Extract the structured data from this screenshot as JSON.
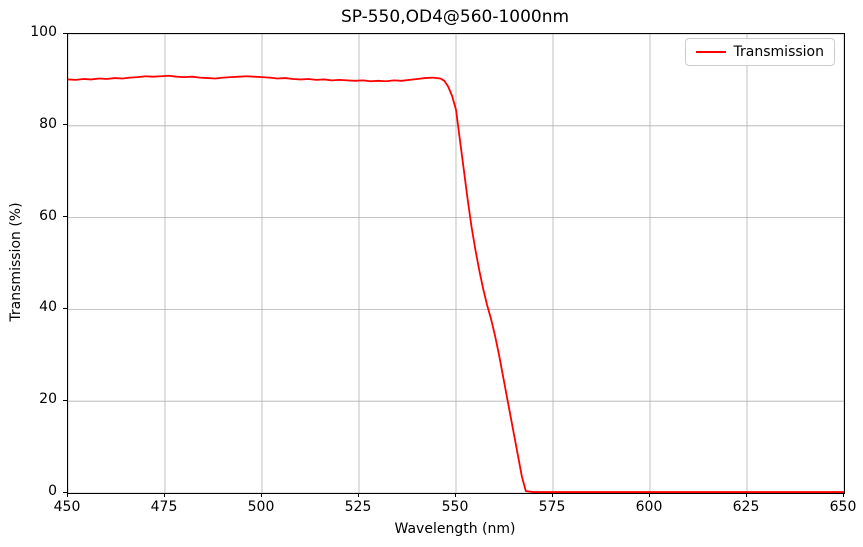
{
  "chart_data": {
    "type": "line",
    "title": "SP-550,OD4@560-1000nm",
    "xlabel": "Wavelength (nm)",
    "ylabel": "Transmission (%)",
    "xlim": [
      450,
      650
    ],
    "ylim": [
      0,
      100
    ],
    "xticks": [
      450,
      475,
      500,
      525,
      550,
      575,
      600,
      625,
      650
    ],
    "yticks": [
      0,
      20,
      40,
      60,
      80,
      100
    ],
    "grid": true,
    "legend": {
      "position": "upper-right",
      "entries": [
        "Transmission"
      ]
    },
    "series": [
      {
        "name": "Transmission",
        "color": "#ff0000",
        "points": [
          [
            450,
            90.1
          ],
          [
            452,
            90.0
          ],
          [
            454,
            90.2
          ],
          [
            456,
            90.1
          ],
          [
            458,
            90.3
          ],
          [
            460,
            90.2
          ],
          [
            462,
            90.4
          ],
          [
            464,
            90.3
          ],
          [
            466,
            90.5
          ],
          [
            468,
            90.6
          ],
          [
            470,
            90.8
          ],
          [
            472,
            90.7
          ],
          [
            474,
            90.8
          ],
          [
            476,
            90.9
          ],
          [
            478,
            90.7
          ],
          [
            480,
            90.6
          ],
          [
            482,
            90.7
          ],
          [
            484,
            90.5
          ],
          [
            486,
            90.4
          ],
          [
            488,
            90.3
          ],
          [
            490,
            90.5
          ],
          [
            492,
            90.6
          ],
          [
            494,
            90.7
          ],
          [
            496,
            90.8
          ],
          [
            498,
            90.7
          ],
          [
            500,
            90.6
          ],
          [
            502,
            90.5
          ],
          [
            504,
            90.3
          ],
          [
            506,
            90.4
          ],
          [
            508,
            90.2
          ],
          [
            510,
            90.1
          ],
          [
            512,
            90.2
          ],
          [
            514,
            90.0
          ],
          [
            516,
            90.1
          ],
          [
            518,
            89.9
          ],
          [
            520,
            90.0
          ],
          [
            522,
            89.9
          ],
          [
            524,
            89.8
          ],
          [
            526,
            89.9
          ],
          [
            528,
            89.7
          ],
          [
            530,
            89.8
          ],
          [
            532,
            89.7
          ],
          [
            534,
            89.9
          ],
          [
            536,
            89.8
          ],
          [
            538,
            90.0
          ],
          [
            540,
            90.2
          ],
          [
            542,
            90.4
          ],
          [
            544,
            90.5
          ],
          [
            546,
            90.3
          ],
          [
            547,
            89.8
          ],
          [
            548,
            88.5
          ],
          [
            549,
            86.5
          ],
          [
            550,
            83.5
          ],
          [
            551,
            77.0
          ],
          [
            552,
            70.5
          ],
          [
            553,
            64.0
          ],
          [
            554,
            58.0
          ],
          [
            555,
            53.0
          ],
          [
            556,
            48.5
          ],
          [
            557,
            44.5
          ],
          [
            558,
            41.0
          ],
          [
            559,
            38.0
          ],
          [
            560,
            34.5
          ],
          [
            561,
            30.5
          ],
          [
            562,
            26.0
          ],
          [
            563,
            21.5
          ],
          [
            564,
            17.0
          ],
          [
            565,
            12.5
          ],
          [
            566,
            8.0
          ],
          [
            567,
            3.5
          ],
          [
            568,
            0.4
          ],
          [
            570,
            0.2
          ],
          [
            575,
            0.2
          ],
          [
            580,
            0.2
          ],
          [
            585,
            0.2
          ],
          [
            590,
            0.2
          ],
          [
            595,
            0.2
          ],
          [
            600,
            0.2
          ],
          [
            605,
            0.2
          ],
          [
            610,
            0.2
          ],
          [
            615,
            0.2
          ],
          [
            620,
            0.2
          ],
          [
            625,
            0.2
          ],
          [
            630,
            0.2
          ],
          [
            635,
            0.2
          ],
          [
            640,
            0.2
          ],
          [
            645,
            0.2
          ],
          [
            650,
            0.2
          ]
        ]
      }
    ]
  },
  "colors": {
    "line": "#ff0000",
    "grid": "#b0b0b0",
    "spine": "#000000",
    "background": "#ffffff",
    "legend_border": "#cccccc",
    "text": "#000000"
  }
}
